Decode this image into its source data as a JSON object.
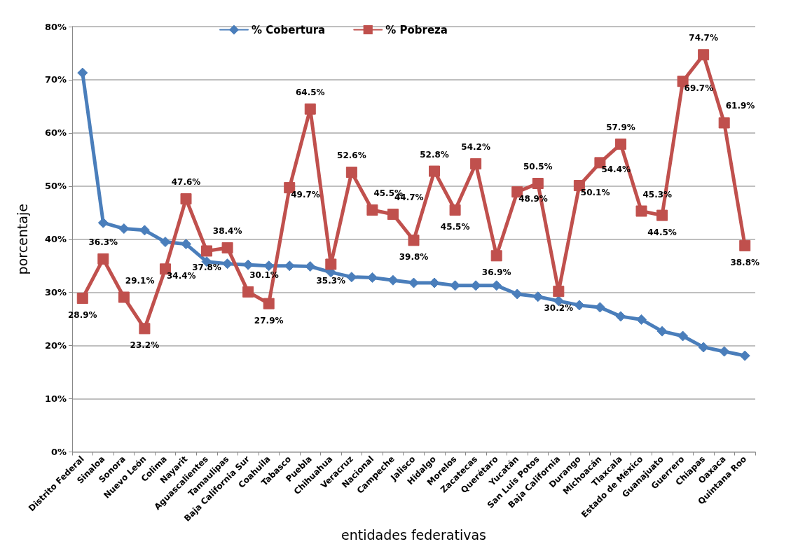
{
  "chart_data": {
    "type": "line",
    "xlabel": "entidades federativas",
    "ylabel": "porcentaje",
    "categories": [
      "Distrito Federal",
      "Sinaloa",
      "Sonora",
      "Nuevo León",
      "Colima",
      "Nayarit",
      "Aguascalientes",
      "Tamaulipas",
      "Baja California Sur",
      "Coahuila",
      "Tabasco",
      "Puebla",
      "Chihuahua",
      "Veracruz",
      "Nacional",
      "Campeche",
      "Jalisco",
      "Hidalgo",
      "Morelos",
      "Zacatecas",
      "Querétaro",
      "Yucatán",
      "San Luis Potos",
      "Baja California",
      "Durango",
      "Michoacán",
      "Tlaxcala",
      "Estado de México",
      "Guanajuato",
      "Guerrero",
      "Chiapas",
      "Oaxaca",
      "Quintana Roo"
    ],
    "series": [
      {
        "name": "% Cobertura",
        "color": "#4a7ebb",
        "marker": "diamond",
        "values": [
          71.3,
          43.1,
          42.0,
          41.7,
          39.5,
          39.1,
          35.8,
          35.4,
          35.2,
          35.0,
          35.0,
          34.9,
          33.8,
          32.9,
          32.8,
          32.3,
          31.8,
          31.8,
          31.3,
          31.3,
          31.3,
          29.7,
          29.2,
          28.4,
          27.6,
          27.2,
          25.5,
          24.9,
          22.7,
          21.8,
          19.7,
          18.9,
          18.1
        ]
      },
      {
        "name": "% Pobreza",
        "color": "#c0504d",
        "marker": "square",
        "values": [
          28.9,
          36.3,
          29.1,
          23.2,
          34.4,
          47.6,
          37.8,
          38.4,
          30.1,
          27.9,
          49.7,
          64.5,
          35.3,
          52.6,
          45.5,
          44.7,
          39.8,
          52.8,
          45.5,
          54.2,
          36.9,
          48.9,
          50.5,
          30.2,
          50.1,
          54.4,
          57.9,
          45.3,
          44.5,
          69.7,
          74.7,
          61.9,
          38.8
        ],
        "value_labels": [
          "28.9%",
          "36.3%",
          "29.1%",
          "23.2%",
          "34.4%",
          "47.6%",
          "37.8%",
          "38.4%",
          "30.1%",
          "27.9%",
          "49.7%",
          "64.5%",
          "35.3%",
          "52.6%",
          "45.5%",
          "44.7%",
          "39.8%",
          "52.8%",
          "45.5%",
          "54.2%",
          "36.9%",
          "48.9%",
          "50.5%",
          "30.2%",
          "50.1%",
          "54.4%",
          "57.9%",
          "45.3%",
          "44.5%",
          "69.7%",
          "74.7%",
          "61.9%",
          "38.8%"
        ]
      }
    ],
    "ylim": [
      0,
      80
    ],
    "yticks": [
      {
        "value": 0,
        "label": "0%"
      },
      {
        "value": 10,
        "label": "10%"
      },
      {
        "value": 20,
        "label": "20%"
      },
      {
        "value": 30,
        "label": "30%"
      },
      {
        "value": 40,
        "label": "40%"
      },
      {
        "value": 50,
        "label": "50%"
      },
      {
        "value": 60,
        "label": "60%"
      },
      {
        "value": 70,
        "label": "70%"
      },
      {
        "value": 80,
        "label": "80%"
      }
    ],
    "grid": "y",
    "legend": "top",
    "line_style": "solid"
  }
}
